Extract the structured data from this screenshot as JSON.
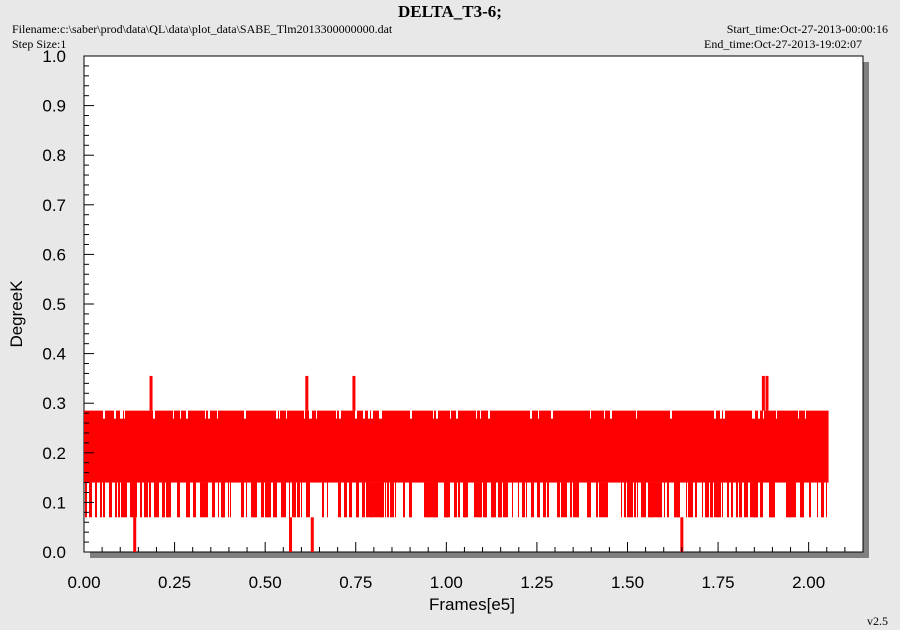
{
  "header": {
    "title": "DELTA_T3-6;",
    "filename": "Filename:c:\\saber\\prod\\data\\QL\\data\\plot_data\\SABE_Tlm2013300000000.dat",
    "step_size": "Step Size:1",
    "start_time": "Start_time:Oct-27-2013-00:00:16",
    "end_time": "End_time:Oct-27-2013-19:02:07",
    "version": "v2.5"
  },
  "colors": {
    "series": "#ff0000",
    "plot_bg": "#ffffff",
    "page_bg": "#e8e8e8",
    "shadow": "#7f7f7f"
  },
  "chart_data": {
    "type": "line",
    "title": "DELTA_T3-6;",
    "xlabel": "Frames[e5]",
    "ylabel": "DegreeK",
    "xlim": [
      0.0,
      2.15
    ],
    "ylim": [
      0.0,
      1.0
    ],
    "x_ticks": [
      "0.00",
      "0.25",
      "0.50",
      "0.75",
      "1.00",
      "1.25",
      "1.50",
      "1.75",
      "2.00"
    ],
    "y_ticks": [
      "0.0",
      "0.1",
      "0.2",
      "0.3",
      "0.4",
      "0.5",
      "0.6",
      "0.7",
      "0.8",
      "0.9",
      "1.0"
    ],
    "grid": false,
    "series": [
      {
        "x_range": [
          0.0,
          2.055
        ],
        "band_min": 0.07,
        "band_max": 0.285,
        "dense_min": 0.14,
        "levels": [
          0.07,
          0.14,
          0.285
        ],
        "spikes": [
          {
            "x": 0.185,
            "y": 0.355
          },
          {
            "x": 0.615,
            "y": 0.355
          },
          {
            "x": 0.745,
            "y": 0.355
          },
          {
            "x": 1.875,
            "y": 0.355
          },
          {
            "x": 1.885,
            "y": 0.355
          }
        ],
        "dips": [
          {
            "x": 0.14,
            "y": 0.0
          },
          {
            "x": 0.57,
            "y": 0.0
          },
          {
            "x": 0.63,
            "y": 0.0
          },
          {
            "x": 1.65,
            "y": 0.0
          }
        ]
      }
    ]
  }
}
